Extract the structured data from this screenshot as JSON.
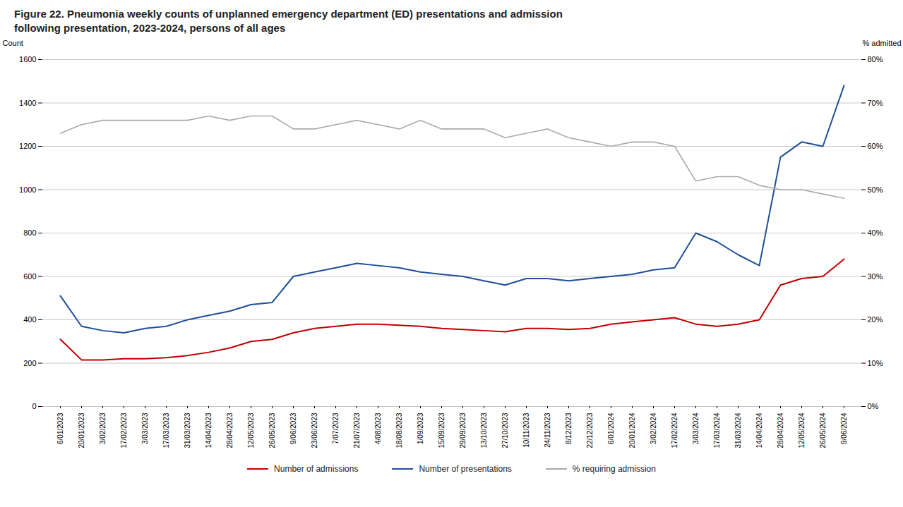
{
  "chart_data": {
    "type": "line",
    "title": "Figure 22. Pneumonia weekly counts of unplanned emergency department (ED) presentations and admission\nfollowing presentation, 2023-2024, persons of all ages",
    "ylabel": "Count",
    "y2label": "% admitted",
    "categories": [
      "6/01/2023",
      "20/01/2023",
      "3/02/2023",
      "17/02/2023",
      "3/03/2023",
      "17/03/2023",
      "31/03/2023",
      "14/04/2023",
      "28/04/2023",
      "12/05/2023",
      "26/05/2023",
      "9/06/2023",
      "23/06/2023",
      "7/07/2023",
      "21/07/2023",
      "4/08/2023",
      "18/08/2023",
      "1/09/2023",
      "15/09/2023",
      "29/09/2023",
      "13/10/2023",
      "27/10/2023",
      "10/11/2023",
      "24/11/2023",
      "8/12/2023",
      "22/12/2023",
      "6/01/2024",
      "20/01/2024",
      "3/02/2024",
      "17/02/2024",
      "3/03/2024",
      "17/03/2024",
      "31/03/2024",
      "14/04/2024",
      "28/04/2024",
      "12/05/2024",
      "26/05/2024",
      "9/06/2024"
    ],
    "series": [
      {
        "name": "Number of admissions",
        "color": "#c00000",
        "values": [
          310,
          215,
          215,
          220,
          220,
          225,
          235,
          250,
          270,
          300,
          310,
          340,
          360,
          370,
          380,
          380,
          375,
          370,
          360,
          355,
          350,
          345,
          360,
          360,
          355,
          360,
          380,
          390,
          400,
          410,
          380,
          370,
          380,
          400,
          560,
          590,
          600,
          680
        ]
      },
      {
        "name": "Number of presentations",
        "color": "#1f4e99",
        "values": [
          510,
          370,
          350,
          340,
          360,
          370,
          400,
          420,
          440,
          470,
          480,
          600,
          620,
          640,
          660,
          650,
          640,
          620,
          610,
          600,
          580,
          560,
          590,
          590,
          580,
          590,
          600,
          610,
          630,
          640,
          800,
          760,
          700,
          650,
          1150,
          1220,
          1200,
          1480
        ]
      },
      {
        "name": "% requiring admission",
        "color": "#aaaaaa",
        "axis": "y2",
        "values": [
          0.63,
          0.65,
          0.66,
          0.66,
          0.66,
          0.66,
          0.66,
          0.67,
          0.66,
          0.67,
          0.67,
          0.64,
          0.64,
          0.65,
          0.66,
          0.65,
          0.64,
          0.66,
          0.64,
          0.64,
          0.64,
          0.62,
          0.63,
          0.64,
          0.62,
          0.61,
          0.6,
          0.61,
          0.61,
          0.6,
          0.52,
          0.53,
          0.53,
          0.51,
          0.5,
          0.5,
          0.49,
          0.48
        ]
      }
    ],
    "ylim": [
      0,
      1600
    ],
    "yticks": [
      0,
      200,
      400,
      600,
      800,
      1000,
      1200,
      1400,
      1600
    ],
    "y2lim": [
      0,
      0.8
    ],
    "y2ticks": [
      {
        "value": 0.0,
        "label": "0%"
      },
      {
        "value": 0.1,
        "label": "10%"
      },
      {
        "value": 0.2,
        "label": "20%"
      },
      {
        "value": 0.3,
        "label": "30%"
      },
      {
        "value": 0.4,
        "label": "40%"
      },
      {
        "value": 0.5,
        "label": "50%"
      },
      {
        "value": 0.6,
        "label": "60%"
      },
      {
        "value": 0.7,
        "label": "70%"
      },
      {
        "value": 0.8,
        "label": "80%"
      }
    ],
    "grid": true,
    "legend": "bottom"
  }
}
